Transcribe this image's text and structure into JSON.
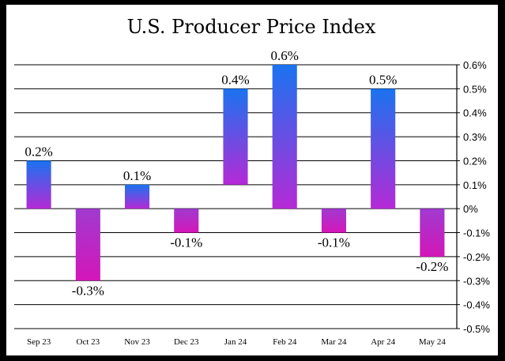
{
  "chart_data": {
    "type": "bar",
    "title": "U.S. Producer Price Index",
    "categories": [
      "Sep 23",
      "Oct 23",
      "Nov 23",
      "Dec 23",
      "Jan 24",
      "Feb 24",
      "Mar 24",
      "Apr 24",
      "May 24"
    ],
    "series": [
      {
        "values": [
          0.2,
          -0.3,
          0.1,
          -0.1,
          0.4,
          0.6,
          -0.1,
          0.5,
          -0.2
        ],
        "labels": [
          "0.2%",
          "-0.3%",
          "0.1%",
          "-0.1%",
          "0.4%",
          "0.6%",
          "-0.1%",
          "0.5%",
          "-0.2%"
        ]
      }
    ],
    "xlabel": "",
    "ylabel": "",
    "ylim": [
      -0.5,
      0.6
    ],
    "yticks": [
      0.6,
      0.5,
      0.4,
      0.3,
      0.2,
      0.1,
      0,
      -0.1,
      -0.2,
      -0.3,
      -0.4,
      -0.5
    ],
    "ytick_labels": [
      "0.6%",
      "0.5%",
      "0.4%",
      "0.3%",
      "0.2%",
      "0.1%",
      "0%",
      "-0.1%",
      "-0.2%",
      "-0.3%",
      "-0.4%",
      "-0.5%"
    ],
    "y_axis_side": "right",
    "grid": true,
    "colors": {
      "bar_top": "#1a73f0",
      "bar_bottom": "#b52ad6",
      "negative_bottom": "#d416b8",
      "background": "#ffffff",
      "border": "#000000"
    }
  }
}
